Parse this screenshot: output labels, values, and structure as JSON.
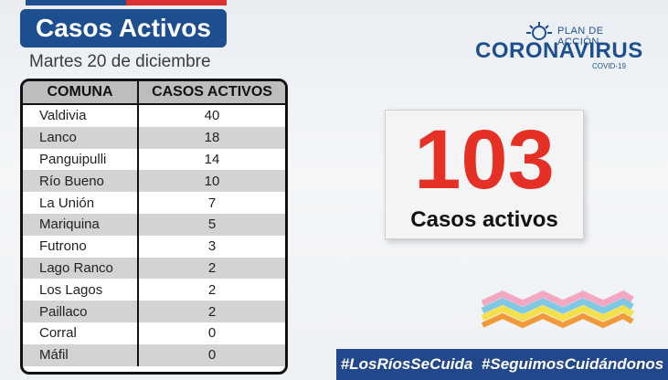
{
  "header": {
    "title": "Casos Activos",
    "date": "Martes 20 de diciembre"
  },
  "logo": {
    "plan_text": "PLAN DE ACCIÓN",
    "main_text": "CORONAVIRUS",
    "sub_text": "COVID-19"
  },
  "table": {
    "headers": [
      "COMUNA",
      "CASOS ACTIVOS"
    ],
    "rows": [
      {
        "comuna": "Valdivia",
        "casos": "40"
      },
      {
        "comuna": "Lanco",
        "casos": "18"
      },
      {
        "comuna": "Panguipulli",
        "casos": "14"
      },
      {
        "comuna": "Río Bueno",
        "casos": "10"
      },
      {
        "comuna": "La Unión",
        "casos": "7"
      },
      {
        "comuna": "Mariquina",
        "casos": "5"
      },
      {
        "comuna": "Futrono",
        "casos": "3"
      },
      {
        "comuna": "Lago Ranco",
        "casos": "2"
      },
      {
        "comuna": "Los Lagos",
        "casos": "2"
      },
      {
        "comuna": "Paillaco",
        "casos": "2"
      },
      {
        "comuna": "Corral",
        "casos": "0"
      },
      {
        "comuna": "Máfil",
        "casos": "0"
      }
    ]
  },
  "summary": {
    "total": "103",
    "label": "Casos activos"
  },
  "hashtags": [
    "#LosRíosSeCuida",
    "#SeguimosCuidándonos"
  ],
  "colors": {
    "brand_blue": "#1d4f8f",
    "accent_red": "#e53025",
    "hashtag_bar": "#22478a"
  }
}
